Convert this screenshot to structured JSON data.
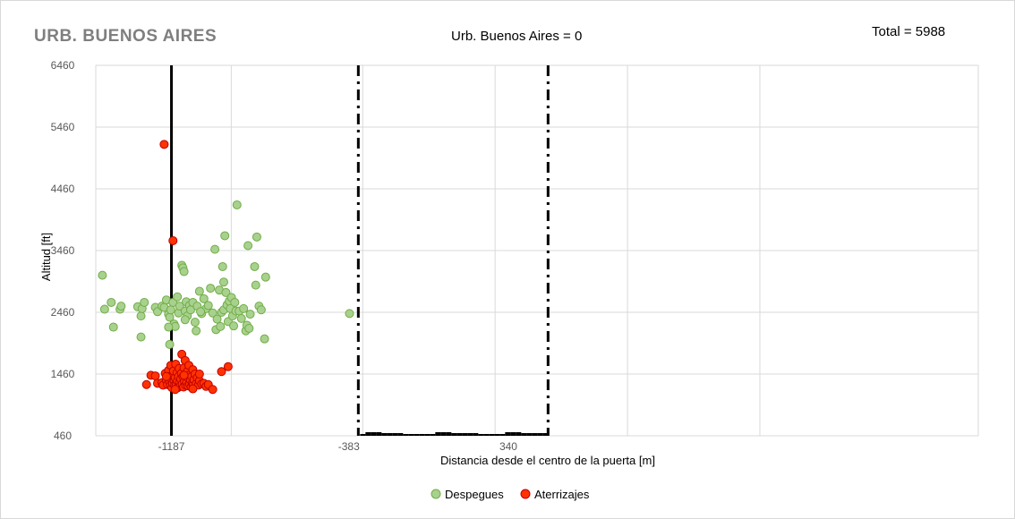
{
  "header": {
    "title": "URB. BUENOS AIRES",
    "subtitle": "Urb. Buenos Aires =  0",
    "total": "Total =  5988"
  },
  "chart_data": {
    "type": "scatter",
    "xlabel": "Distancia desde el centro de la puerta [m]",
    "ylabel": "Altitud [ft]",
    "xlim": [
      -1530,
      2470
    ],
    "ylim": [
      460,
      6460
    ],
    "y_ticks": [
      460,
      1460,
      2460,
      3460,
      4460,
      5460,
      6460
    ],
    "x_ticks": [
      -1187,
      -383,
      340
    ],
    "x_gridlines": [
      -916,
      -320,
      280,
      880,
      1480
    ],
    "grid": true,
    "legend_position": "bottom",
    "reference_lines": [
      {
        "x": -1187,
        "style": "solid",
        "color": "#000000"
      },
      {
        "x": -340,
        "style": "dash-dot",
        "color": "#000000"
      },
      {
        "x": 520,
        "style": "dash-dot",
        "color": "#000000"
      }
    ],
    "bottom_bars": {
      "x_start": -340,
      "x_end": 520,
      "min_height": 20,
      "max_height": 60
    },
    "series": [
      {
        "name": "Despegues",
        "color": "#a9d18e",
        "edge": "#70ad47",
        "points": [
          [
            -1500,
            3060
          ],
          [
            -1490,
            2510
          ],
          [
            -1460,
            2620
          ],
          [
            -1450,
            2220
          ],
          [
            -1420,
            2510
          ],
          [
            -1415,
            2560
          ],
          [
            -1340,
            2550
          ],
          [
            -1325,
            2400
          ],
          [
            -1320,
            2520
          ],
          [
            -1310,
            2620
          ],
          [
            -1325,
            2060
          ],
          [
            -1260,
            2540
          ],
          [
            -1250,
            2470
          ],
          [
            -1230,
            2560
          ],
          [
            -1220,
            2540
          ],
          [
            -1210,
            2660
          ],
          [
            -1200,
            2430
          ],
          [
            -1195,
            2380
          ],
          [
            -1190,
            2500
          ],
          [
            -1180,
            2620
          ],
          [
            -1175,
            2270
          ],
          [
            -1170,
            2230
          ],
          [
            -1160,
            2710
          ],
          [
            -1155,
            2450
          ],
          [
            -1150,
            2560
          ],
          [
            -1140,
            3220
          ],
          [
            -1135,
            3180
          ],
          [
            -1130,
            3120
          ],
          [
            -1125,
            2480
          ],
          [
            -1120,
            2630
          ],
          [
            -1115,
            2400
          ],
          [
            -1105,
            2570
          ],
          [
            -1100,
            2500
          ],
          [
            -1090,
            2620
          ],
          [
            -1080,
            2300
          ],
          [
            -1075,
            2160
          ],
          [
            -1070,
            2560
          ],
          [
            -1060,
            2800
          ],
          [
            -1050,
            2440
          ],
          [
            -1040,
            2680
          ],
          [
            -1030,
            2520
          ],
          [
            -1020,
            2570
          ],
          [
            -1010,
            2850
          ],
          [
            -1000,
            2450
          ],
          [
            -990,
            3480
          ],
          [
            -985,
            2180
          ],
          [
            -980,
            2350
          ],
          [
            -970,
            2820
          ],
          [
            -965,
            2230
          ],
          [
            -960,
            2460
          ],
          [
            -955,
            3200
          ],
          [
            -950,
            2500
          ],
          [
            -945,
            3700
          ],
          [
            -940,
            2780
          ],
          [
            -935,
            2580
          ],
          [
            -930,
            2310
          ],
          [
            -925,
            2640
          ],
          [
            -920,
            2520
          ],
          [
            -915,
            2700
          ],
          [
            -910,
            2400
          ],
          [
            -905,
            2240
          ],
          [
            -900,
            2620
          ],
          [
            -895,
            2480
          ],
          [
            -890,
            4200
          ],
          [
            -880,
            2480
          ],
          [
            -870,
            2360
          ],
          [
            -860,
            2520
          ],
          [
            -850,
            2160
          ],
          [
            -845,
            2250
          ],
          [
            -840,
            3540
          ],
          [
            -835,
            2200
          ],
          [
            -830,
            2430
          ],
          [
            -810,
            3200
          ],
          [
            -805,
            2900
          ],
          [
            -800,
            3680
          ],
          [
            -790,
            2560
          ],
          [
            -780,
            2500
          ],
          [
            -765,
            2030
          ],
          [
            -760,
            3030
          ],
          [
            -1195,
            1940
          ],
          [
            -1200,
            2220
          ],
          [
            -950,
            2950
          ],
          [
            -1125,
            2340
          ],
          [
            -1055,
            2470
          ],
          [
            -380,
            2440
          ]
        ]
      },
      {
        "name": "Aterrizajes",
        "color": "#ff3300",
        "edge": "#c00000",
        "points": [
          [
            -1220,
            5180
          ],
          [
            -1180,
            3620
          ],
          [
            -1280,
            1440
          ],
          [
            -1260,
            1430
          ],
          [
            -1250,
            1310
          ],
          [
            -1300,
            1290
          ],
          [
            -1230,
            1320
          ],
          [
            -1225,
            1280
          ],
          [
            -1215,
            1470
          ],
          [
            -1210,
            1360
          ],
          [
            -1205,
            1290
          ],
          [
            -1200,
            1520
          ],
          [
            -1198,
            1420
          ],
          [
            -1195,
            1330
          ],
          [
            -1192,
            1270
          ],
          [
            -1190,
            1600
          ],
          [
            -1188,
            1380
          ],
          [
            -1185,
            1240
          ],
          [
            -1182,
            1310
          ],
          [
            -1180,
            1450
          ],
          [
            -1178,
            1510
          ],
          [
            -1175,
            1350
          ],
          [
            -1172,
            1280
          ],
          [
            -1170,
            1400
          ],
          [
            -1168,
            1620
          ],
          [
            -1165,
            1290
          ],
          [
            -1162,
            1480
          ],
          [
            -1160,
            1350
          ],
          [
            -1158,
            1240
          ],
          [
            -1155,
            1420
          ],
          [
            -1152,
            1550
          ],
          [
            -1150,
            1320
          ],
          [
            -1148,
            1260
          ],
          [
            -1145,
            1380
          ],
          [
            -1142,
            1470
          ],
          [
            -1140,
            1780
          ],
          [
            -1138,
            1300
          ],
          [
            -1135,
            1420
          ],
          [
            -1132,
            1250
          ],
          [
            -1130,
            1560
          ],
          [
            -1128,
            1340
          ],
          [
            -1125,
            1680
          ],
          [
            -1122,
            1280
          ],
          [
            -1120,
            1410
          ],
          [
            -1118,
            1330
          ],
          [
            -1115,
            1500
          ],
          [
            -1112,
            1270
          ],
          [
            -1110,
            1390
          ],
          [
            -1108,
            1600
          ],
          [
            -1105,
            1300
          ],
          [
            -1102,
            1450
          ],
          [
            -1100,
            1360
          ],
          [
            -1098,
            1250
          ],
          [
            -1095,
            1420
          ],
          [
            -1092,
            1310
          ],
          [
            -1090,
            1530
          ],
          [
            -1088,
            1290
          ],
          [
            -1085,
            1370
          ],
          [
            -1080,
            1460
          ],
          [
            -1075,
            1300
          ],
          [
            -1070,
            1400
          ],
          [
            -1065,
            1280
          ],
          [
            -1060,
            1350
          ],
          [
            -1050,
            1300
          ],
          [
            -1040,
            1310
          ],
          [
            -1030,
            1260
          ],
          [
            -1020,
            1290
          ],
          [
            -1000,
            1210
          ],
          [
            -960,
            1500
          ],
          [
            -930,
            1580
          ],
          [
            -1210,
            1420
          ],
          [
            -1170,
            1210
          ],
          [
            -1130,
            1440
          ],
          [
            -1090,
            1220
          ],
          [
            -1060,
            1460
          ]
        ]
      }
    ]
  }
}
